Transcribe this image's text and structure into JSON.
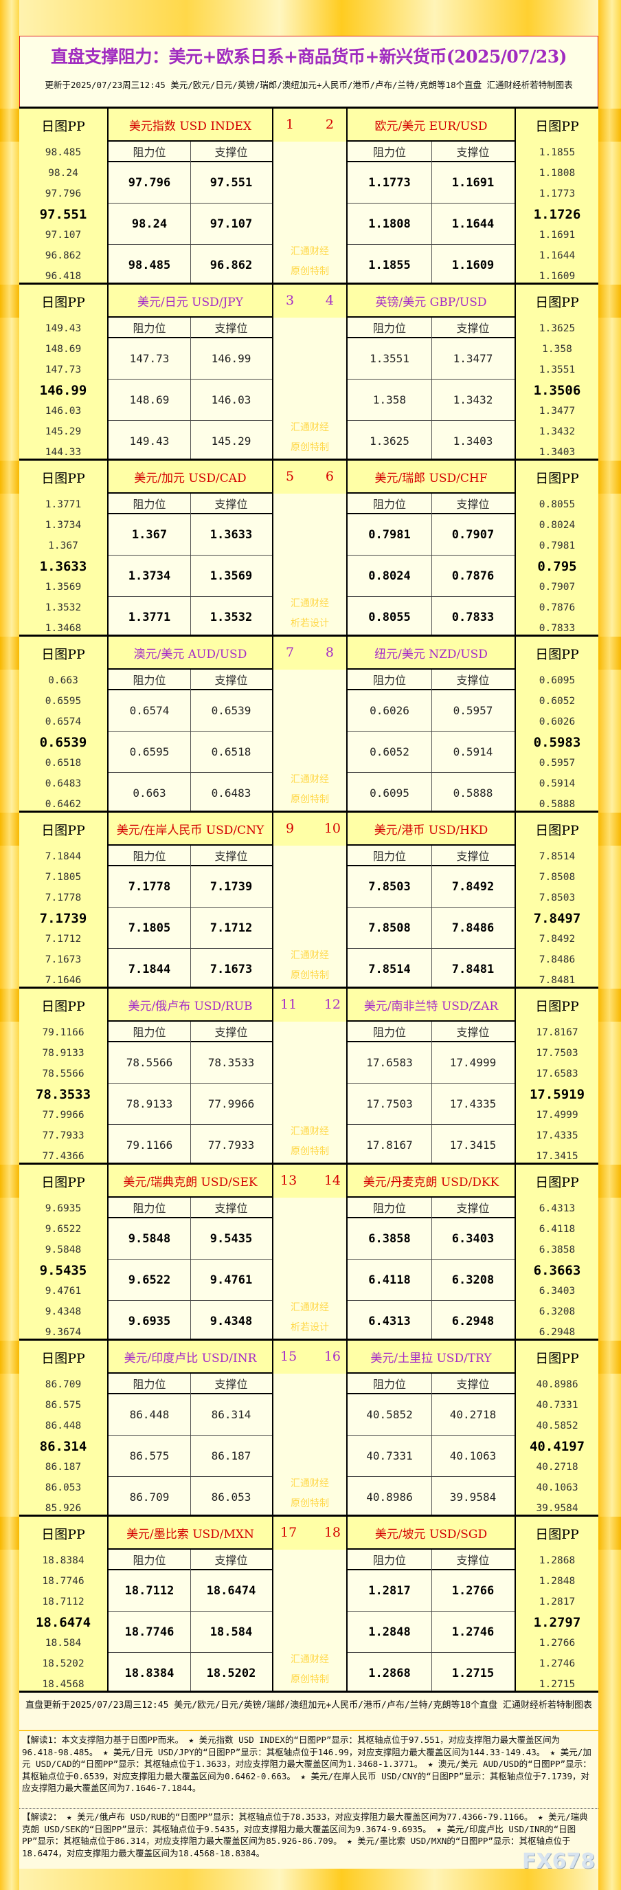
{
  "header": {
    "title": "直盘支撑阻力：美元+欧系日系+商品货币+新兴货币(2025/07/23)",
    "subtitle": "更新于2025/07/23周三12:45 美元/欧元/日元/英镑/瑞郎/澳纽加元+人民币/港币/卢布/兰特/克朗等18个直盘 汇通财经析若特制图表"
  },
  "labels": {
    "pp": "日图PP",
    "resistance": "阻力位",
    "support": "支撑位"
  },
  "colors": {
    "red_title": "#d40000",
    "purple_title": "#a52cc8",
    "watermark": "#ffd84a"
  },
  "blocks": [
    {
      "nums": [
        "1",
        "2"
      ],
      "title_color": "red",
      "bold": true,
      "watermark": [
        "汇通财经",
        "原创特制"
      ],
      "left": {
        "name": "美元指数 USD INDEX",
        "pp": [
          "98.485",
          "98.24",
          "97.796",
          "97.551",
          "97.107",
          "96.862",
          "96.418"
        ],
        "rows": [
          [
            "97.796",
            "97.551"
          ],
          [
            "98.24",
            "97.107"
          ],
          [
            "98.485",
            "96.862"
          ]
        ]
      },
      "right": {
        "name": "欧元/美元 EUR/USD",
        "pp": [
          "1.1855",
          "1.1808",
          "1.1773",
          "1.1726",
          "1.1691",
          "1.1644",
          "1.1609"
        ],
        "rows": [
          [
            "1.1773",
            "1.1691"
          ],
          [
            "1.1808",
            "1.1644"
          ],
          [
            "1.1855",
            "1.1609"
          ]
        ]
      }
    },
    {
      "nums": [
        "3",
        "4"
      ],
      "title_color": "purple",
      "bold": false,
      "watermark": [
        "汇通财经",
        "原创特制"
      ],
      "left": {
        "name": "美元/日元 USD/JPY",
        "pp": [
          "149.43",
          "148.69",
          "147.73",
          "146.99",
          "146.03",
          "145.29",
          "144.33"
        ],
        "rows": [
          [
            "147.73",
            "146.99"
          ],
          [
            "148.69",
            "146.03"
          ],
          [
            "149.43",
            "145.29"
          ]
        ]
      },
      "right": {
        "name": "英镑/美元 GBP/USD",
        "pp": [
          "1.3625",
          "1.358",
          "1.3551",
          "1.3506",
          "1.3477",
          "1.3432",
          "1.3403"
        ],
        "rows": [
          [
            "1.3551",
            "1.3477"
          ],
          [
            "1.358",
            "1.3432"
          ],
          [
            "1.3625",
            "1.3403"
          ]
        ]
      }
    },
    {
      "nums": [
        "5",
        "6"
      ],
      "title_color": "red",
      "bold": true,
      "watermark": [
        "汇通财经",
        "析若设计"
      ],
      "left": {
        "name": "美元/加元 USD/CAD",
        "pp": [
          "1.3771",
          "1.3734",
          "1.367",
          "1.3633",
          "1.3569",
          "1.3532",
          "1.3468"
        ],
        "rows": [
          [
            "1.367",
            "1.3633"
          ],
          [
            "1.3734",
            "1.3569"
          ],
          [
            "1.3771",
            "1.3532"
          ]
        ]
      },
      "right": {
        "name": "美元/瑞郎 USD/CHF",
        "pp": [
          "0.8055",
          "0.8024",
          "0.7981",
          "0.795",
          "0.7907",
          "0.7876",
          "0.7833"
        ],
        "rows": [
          [
            "0.7981",
            "0.7907"
          ],
          [
            "0.8024",
            "0.7876"
          ],
          [
            "0.8055",
            "0.7833"
          ]
        ]
      }
    },
    {
      "nums": [
        "7",
        "8"
      ],
      "title_color": "purple",
      "bold": false,
      "watermark": [
        "汇通财经",
        "原创特制"
      ],
      "left": {
        "name": "澳元/美元 AUD/USD",
        "pp": [
          "0.663",
          "0.6595",
          "0.6574",
          "0.6539",
          "0.6518",
          "0.6483",
          "0.6462"
        ],
        "rows": [
          [
            "0.6574",
            "0.6539"
          ],
          [
            "0.6595",
            "0.6518"
          ],
          [
            "0.663",
            "0.6483"
          ]
        ]
      },
      "right": {
        "name": "纽元/美元 NZD/USD",
        "pp": [
          "0.6095",
          "0.6052",
          "0.6026",
          "0.5983",
          "0.5957",
          "0.5914",
          "0.5888"
        ],
        "rows": [
          [
            "0.6026",
            "0.5957"
          ],
          [
            "0.6052",
            "0.5914"
          ],
          [
            "0.6095",
            "0.5888"
          ]
        ]
      }
    },
    {
      "nums": [
        "9",
        "10"
      ],
      "title_color": "red",
      "bold": true,
      "watermark": [
        "汇通财经",
        "原创特制"
      ],
      "left": {
        "name": "美元/在岸人民币 USD/CNY",
        "pp": [
          "7.1844",
          "7.1805",
          "7.1778",
          "7.1739",
          "7.1712",
          "7.1673",
          "7.1646"
        ],
        "rows": [
          [
            "7.1778",
            "7.1739"
          ],
          [
            "7.1805",
            "7.1712"
          ],
          [
            "7.1844",
            "7.1673"
          ]
        ]
      },
      "right": {
        "name": "美元/港币 USD/HKD",
        "pp": [
          "7.8514",
          "7.8508",
          "7.8503",
          "7.8497",
          "7.8492",
          "7.8486",
          "7.8481"
        ],
        "rows": [
          [
            "7.8503",
            "7.8492"
          ],
          [
            "7.8508",
            "7.8486"
          ],
          [
            "7.8514",
            "7.8481"
          ]
        ]
      }
    },
    {
      "nums": [
        "11",
        "12"
      ],
      "title_color": "purple",
      "bold": false,
      "watermark": [
        "汇通财经",
        "原创特制"
      ],
      "left": {
        "name": "美元/俄卢布 USD/RUB",
        "pp": [
          "79.1166",
          "78.9133",
          "78.5566",
          "78.3533",
          "77.9966",
          "77.7933",
          "77.4366"
        ],
        "rows": [
          [
            "78.5566",
            "78.3533"
          ],
          [
            "78.9133",
            "77.9966"
          ],
          [
            "79.1166",
            "77.7933"
          ]
        ]
      },
      "right": {
        "name": "美元/南非兰特 USD/ZAR",
        "pp": [
          "17.8167",
          "17.7503",
          "17.6583",
          "17.5919",
          "17.4999",
          "17.4335",
          "17.3415"
        ],
        "rows": [
          [
            "17.6583",
            "17.4999"
          ],
          [
            "17.7503",
            "17.4335"
          ],
          [
            "17.8167",
            "17.3415"
          ]
        ]
      }
    },
    {
      "nums": [
        "13",
        "14"
      ],
      "title_color": "red",
      "bold": true,
      "watermark": [
        "汇通财经",
        "析若设计"
      ],
      "left": {
        "name": "美元/瑞典克朗 USD/SEK",
        "pp": [
          "9.6935",
          "9.6522",
          "9.5848",
          "9.5435",
          "9.4761",
          "9.4348",
          "9.3674"
        ],
        "rows": [
          [
            "9.5848",
            "9.5435"
          ],
          [
            "9.6522",
            "9.4761"
          ],
          [
            "9.6935",
            "9.4348"
          ]
        ]
      },
      "right": {
        "name": "美元/丹麦克朗 USD/DKK",
        "pp": [
          "6.4313",
          "6.4118",
          "6.3858",
          "6.3663",
          "6.3403",
          "6.3208",
          "6.2948"
        ],
        "rows": [
          [
            "6.3858",
            "6.3403"
          ],
          [
            "6.4118",
            "6.3208"
          ],
          [
            "6.4313",
            "6.2948"
          ]
        ]
      }
    },
    {
      "nums": [
        "15",
        "16"
      ],
      "title_color": "purple",
      "bold": false,
      "watermark": [
        "汇通财经",
        "原创特制"
      ],
      "left": {
        "name": "美元/印度卢比 USD/INR",
        "pp": [
          "86.709",
          "86.575",
          "86.448",
          "86.314",
          "86.187",
          "86.053",
          "85.926"
        ],
        "rows": [
          [
            "86.448",
            "86.314"
          ],
          [
            "86.575",
            "86.187"
          ],
          [
            "86.709",
            "86.053"
          ]
        ]
      },
      "right": {
        "name": "美元/土里拉 USD/TRY",
        "pp": [
          "40.8986",
          "40.7331",
          "40.5852",
          "40.4197",
          "40.2718",
          "40.1063",
          "39.9584"
        ],
        "rows": [
          [
            "40.5852",
            "40.2718"
          ],
          [
            "40.7331",
            "40.1063"
          ],
          [
            "40.8986",
            "39.9584"
          ]
        ]
      }
    },
    {
      "nums": [
        "17",
        "18"
      ],
      "title_color": "red",
      "bold": true,
      "watermark": [
        "汇通财经",
        "原创特制"
      ],
      "left": {
        "name": "美元/墨比索 USD/MXN",
        "pp": [
          "18.8384",
          "18.7746",
          "18.7112",
          "18.6474",
          "18.584",
          "18.5202",
          "18.4568"
        ],
        "rows": [
          [
            "18.7112",
            "18.6474"
          ],
          [
            "18.7746",
            "18.584"
          ],
          [
            "18.8384",
            "18.5202"
          ]
        ]
      },
      "right": {
        "name": "美元/坡元 USD/SGD",
        "pp": [
          "1.2868",
          "1.2848",
          "1.2817",
          "1.2797",
          "1.2766",
          "1.2746",
          "1.2715"
        ],
        "rows": [
          [
            "1.2817",
            "1.2766"
          ],
          [
            "1.2848",
            "1.2746"
          ],
          [
            "1.2868",
            "1.2715"
          ]
        ]
      }
    }
  ],
  "footer": {
    "update": "直盘更新于2025/07/23周三12:45 美元/欧元/日元/英镑/瑞郎/澳纽加元+人民币/港币/卢布/兰特/克朗等18个直盘 汇通财经析若特制图表",
    "note1": "【解读1：本文支撑阻力基于日图PP而来。 ★ 美元指数 USD INDEX的“日图PP”显示：其枢轴点位于97.551，对应支撑阻力最大覆盖区间为96.418-98.485。 ★ 美元/日元 USD/JPY的“日图PP”显示：其枢轴点位于146.99，对应支撑阻力最大覆盖区间为144.33-149.43。 ★ 美元/加元 USD/CAD的“日图PP”显示：其枢轴点位于1.3633，对应支撑阻力最大覆盖区间为1.3468-1.3771。 ★ 澳元/美元 AUD/USD的“日图PP”显示：其枢轴点位于0.6539，对应支撑阻力最大覆盖区间为0.6462-0.663。 ★ 美元/在岸人民币 USD/CNY的“日图PP”显示：其枢轴点位于7.1739，对应支撑阻力最大覆盖区间为7.1646-7.1844。",
    "note2": "【解读2： ★ 美元/俄卢布 USD/RUB的“日图PP”显示：其枢轴点位于78.3533，对应支撑阻力最大覆盖区间为77.4366-79.1166。 ★ 美元/瑞典克朗 USD/SEK的“日图PP”显示：其枢轴点位于9.5435，对应支撑阻力最大覆盖区间为9.3674-9.6935。 ★ 美元/印度卢比 USD/INR的“日图PP”显示：其枢轴点位于86.314，对应支撑阻力最大覆盖区间为85.926-86.709。 ★ 美元/墨比索 USD/MXN的“日图PP”显示：其枢轴点位于18.6474，对应支撑阻力最大覆盖区间为18.4568-18.8384。",
    "watermark": "FX678"
  }
}
